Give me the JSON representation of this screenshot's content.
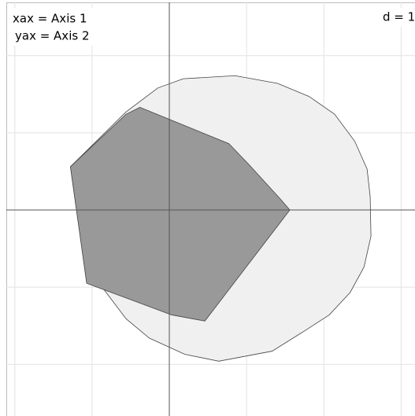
{
  "chart_data": {
    "type": "polygon",
    "annotations": [
      "xax = Axis 1",
      "yax = Axis 2"
    ],
    "scale_label": "d = 1",
    "xlim": [
      -2.11,
      3.18
    ],
    "ylim": [
      -2.67,
      2.69
    ],
    "xticks": [
      -2,
      -1,
      0,
      1,
      2,
      3
    ],
    "yticks": [
      -2,
      -1,
      0,
      1,
      2
    ],
    "grid": true,
    "series": [
      {
        "color": "#f0f0f0",
        "x": [
          0.18,
          0.85,
          1.4,
          1.81,
          2.14,
          2.4,
          2.56,
          2.6,
          2.61,
          2.52,
          2.34,
          2.07,
          1.73,
          1.33,
          0.64,
          0.2,
          -0.26,
          -0.56,
          -0.87,
          -1.07,
          -1.28,
          -0.56,
          -0.15
        ],
        "y": [
          1.7,
          1.74,
          1.64,
          1.47,
          1.24,
          0.89,
          0.53,
          0.17,
          -0.34,
          -0.74,
          -1.07,
          -1.36,
          -1.58,
          -1.83,
          -1.96,
          -1.87,
          -1.66,
          -1.41,
          -1.0,
          -0.93,
          0.56,
          1.27,
          1.58
        ]
      },
      {
        "color": "#999999",
        "x": [
          -0.38,
          0.77,
          1.02,
          1.43,
          1.56,
          0.46,
          0.03,
          -1.07,
          -1.28,
          -0.56
        ],
        "y": [
          1.33,
          0.86,
          0.6,
          0.15,
          0,
          -1.44,
          -1.36,
          -0.95,
          0.56,
          1.24
        ]
      }
    ]
  }
}
